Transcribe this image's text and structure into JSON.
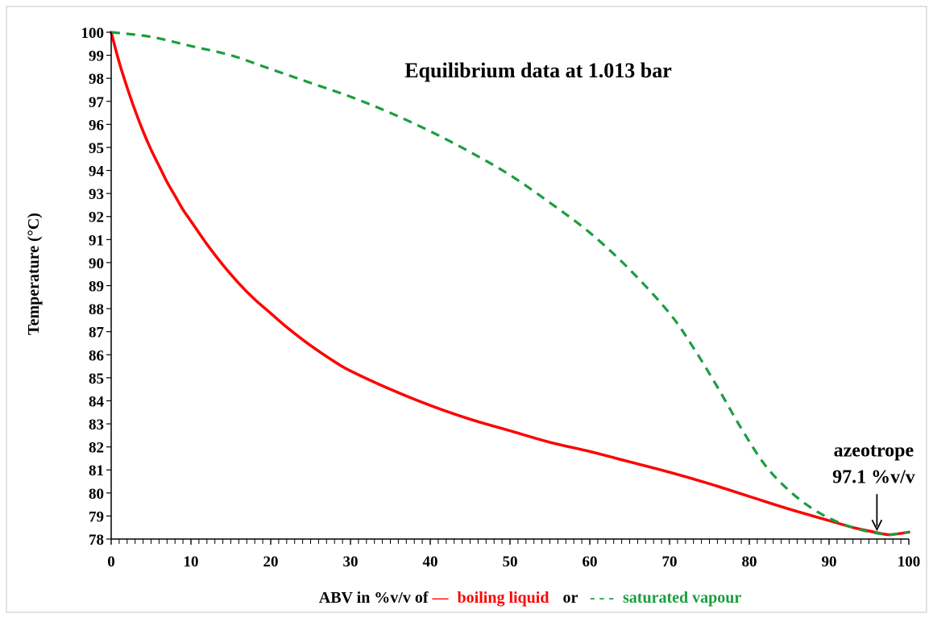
{
  "chart_data": {
    "type": "line",
    "title": "Equilibrium data at 1.013 bar",
    "xlabel_parts": {
      "prefix": "ABV in  %v/v of",
      "liquid_marker": "—",
      "liquid_label": "boiling  liquid",
      "connector": "or",
      "vapour_marker": "- - -",
      "vapour_label": "saturated vapour"
    },
    "ylabel": "Temperature  (°C)",
    "xlim": [
      0,
      100
    ],
    "ylim": [
      78,
      100
    ],
    "x_ticks": [
      "0",
      "10",
      "20",
      "30",
      "40",
      "50",
      "60",
      "70",
      "80",
      "90",
      "100"
    ],
    "y_ticks": [
      "78",
      "79",
      "80",
      "81",
      "82",
      "83",
      "84",
      "85",
      "86",
      "87",
      "88",
      "89",
      "90",
      "91",
      "92",
      "93",
      "94",
      "95",
      "96",
      "97",
      "98",
      "99",
      "100"
    ],
    "series": [
      {
        "name": "boiling liquid",
        "color": "#ff0000",
        "style": "solid",
        "points": [
          [
            0,
            100
          ],
          [
            1,
            98.7
          ],
          [
            2,
            97.6
          ],
          [
            3,
            96.6
          ],
          [
            4,
            95.7
          ],
          [
            5,
            94.9
          ],
          [
            6,
            94.2
          ],
          [
            7,
            93.5
          ],
          [
            8,
            92.9
          ],
          [
            9,
            92.3
          ],
          [
            10,
            91.8
          ],
          [
            12,
            90.8
          ],
          [
            14,
            89.9
          ],
          [
            16,
            89.1
          ],
          [
            18,
            88.4
          ],
          [
            20,
            87.8
          ],
          [
            22,
            87.2
          ],
          [
            25,
            86.4
          ],
          [
            28,
            85.7
          ],
          [
            30,
            85.3
          ],
          [
            35,
            84.5
          ],
          [
            40,
            83.8
          ],
          [
            45,
            83.2
          ],
          [
            50,
            82.7
          ],
          [
            55,
            82.2
          ],
          [
            60,
            81.8
          ],
          [
            65,
            81.35
          ],
          [
            70,
            80.9
          ],
          [
            75,
            80.4
          ],
          [
            80,
            79.85
          ],
          [
            85,
            79.3
          ],
          [
            90,
            78.8
          ],
          [
            93,
            78.5
          ],
          [
            95,
            78.35
          ],
          [
            97.1,
            78.2
          ],
          [
            98,
            78.2
          ],
          [
            100,
            78.3
          ]
        ]
      },
      {
        "name": "saturated vapour",
        "color": "#1a9e3f",
        "style": "dashed",
        "points": [
          [
            0,
            100
          ],
          [
            5,
            99.8
          ],
          [
            10,
            99.4
          ],
          [
            15,
            99.0
          ],
          [
            20,
            98.4
          ],
          [
            25,
            97.8
          ],
          [
            30,
            97.2
          ],
          [
            35,
            96.5
          ],
          [
            40,
            95.7
          ],
          [
            45,
            94.8
          ],
          [
            50,
            93.8
          ],
          [
            55,
            92.6
          ],
          [
            60,
            91.3
          ],
          [
            65,
            89.7
          ],
          [
            70,
            87.8
          ],
          [
            73,
            86.3
          ],
          [
            76,
            84.6
          ],
          [
            79,
            82.8
          ],
          [
            82,
            81.2
          ],
          [
            85,
            80.1
          ],
          [
            88,
            79.3
          ],
          [
            91,
            78.75
          ],
          [
            94,
            78.4
          ],
          [
            96,
            78.25
          ],
          [
            97.1,
            78.2
          ],
          [
            98,
            78.2
          ],
          [
            100,
            78.3
          ]
        ]
      }
    ],
    "annotations": [
      {
        "text": [
          "azeotrope",
          "97.1 %v/v"
        ],
        "x": 96,
        "y": 78.2
      }
    ],
    "grid": false
  }
}
